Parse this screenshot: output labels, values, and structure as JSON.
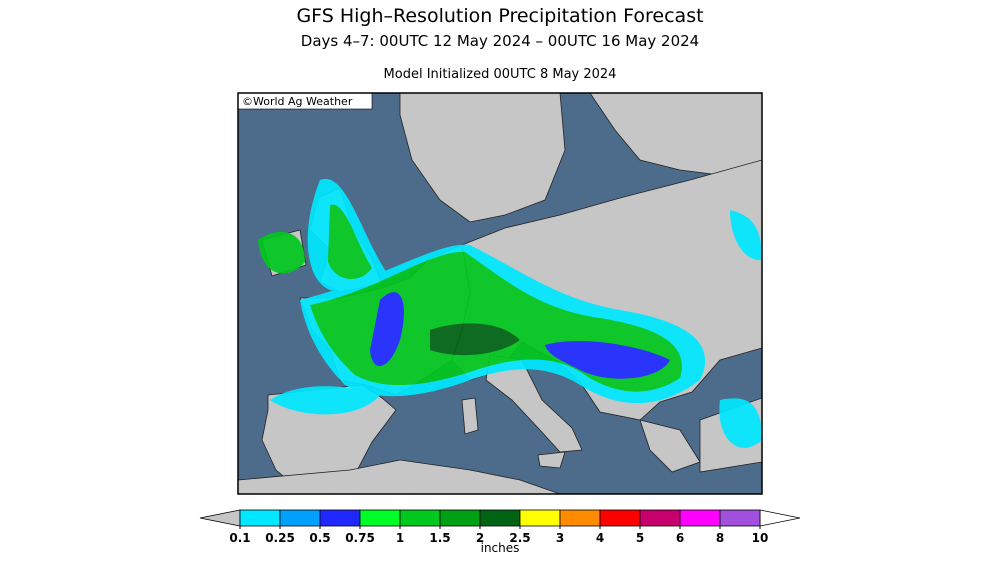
{
  "header": {
    "title": "GFS High–Resolution Precipitation Forecast",
    "subtitle": "Days 4–7: 00UTC 12 May 2024 – 00UTC 16 May 2024",
    "init": "Model Initialized 00UTC 8 May 2024"
  },
  "map": {
    "credit": "©World Ag Weather"
  },
  "legend": {
    "unit": "inches",
    "ticks": [
      0.1,
      0.25,
      0.5,
      0.75,
      1,
      1.5,
      2,
      2.5,
      3,
      4,
      5,
      6,
      8,
      10
    ],
    "colors": [
      "#00e8ff",
      "#00a0ff",
      "#1e28ff",
      "#00ff28",
      "#00c81e",
      "#00a014",
      "#006414",
      "#ffff00",
      "#ff8c00",
      "#ff0000",
      "#c8006e",
      "#ff00ff",
      "#a050dc"
    ]
  }
}
